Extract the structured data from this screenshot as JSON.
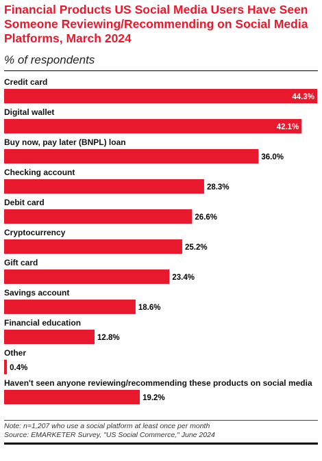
{
  "title": "Financial Products US Social Media Users Have Seen Someone Reviewing/Recommending on Social Media Platforms, March 2024",
  "subtitle": "% of respondents",
  "note": "Note: n=1,207 who use a social platform at least once per month",
  "source": "Source: EMARKETER Survey, \"US Social Commerce,\" June 2024",
  "colors": {
    "bar": "#e8192c",
    "title": "#e8192c",
    "inner_label": "#ffffff",
    "outer_label": "#000000"
  },
  "chart_data": {
    "type": "bar",
    "orientation": "horizontal",
    "categories": [
      "Credit card",
      "Digital wallet",
      "Buy now, pay later (BNPL) loan",
      "Checking account",
      "Debit card",
      "Cryptocurrency",
      "Gift card",
      "Savings account",
      "Financial education",
      "Other",
      "Haven't seen anyone reviewing/recommending these products on social media"
    ],
    "values": [
      44.3,
      42.1,
      36.0,
      28.3,
      26.6,
      25.2,
      23.4,
      18.6,
      12.8,
      0.4,
      19.2
    ],
    "value_labels": [
      "44.3%",
      "42.1%",
      "36.0%",
      "28.3%",
      "26.6%",
      "25.2%",
      "23.4%",
      "18.6%",
      "12.8%",
      "0.4%",
      "19.2%"
    ],
    "xlim": [
      0,
      44.3
    ],
    "grid": false,
    "legend": "none"
  }
}
